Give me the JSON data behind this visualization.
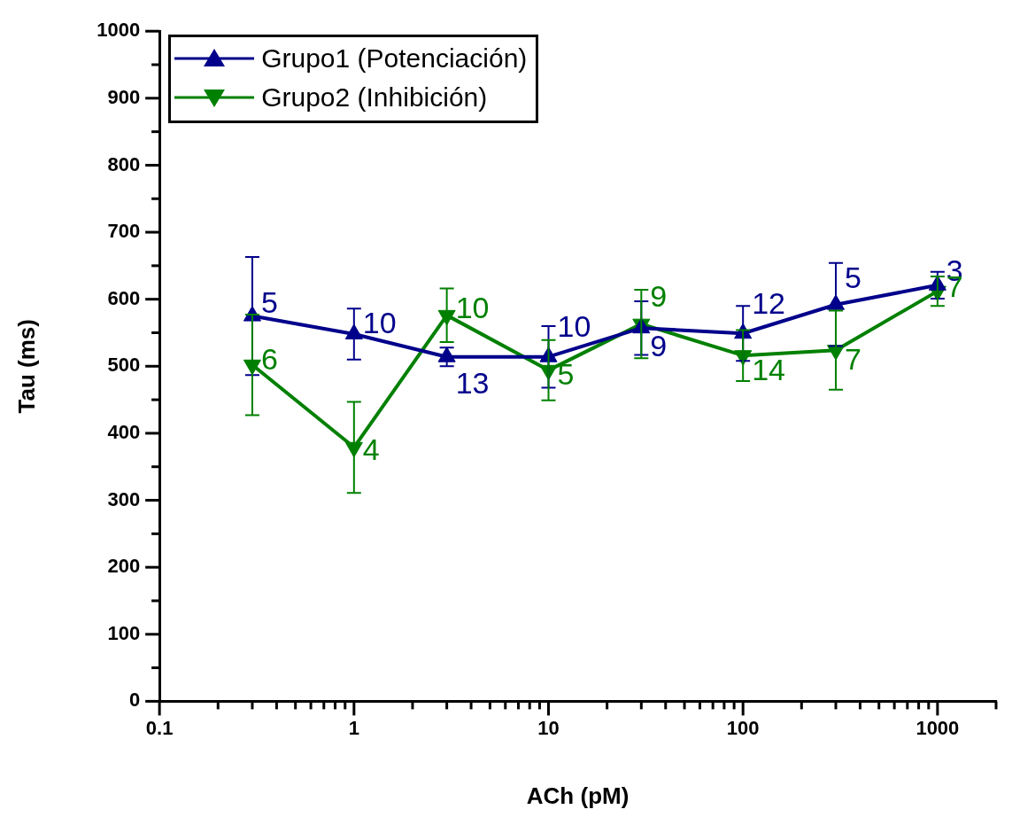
{
  "chart_data": {
    "type": "line",
    "xlabel": "ACh (pM)",
    "ylabel": "Tau (ms)",
    "log": "x",
    "x": [
      0.3,
      1,
      3,
      10,
      30,
      100,
      300,
      1000
    ],
    "series": [
      {
        "name": "Grupo1 (Potenciación)",
        "color": "#00008b",
        "marker": "triangle",
        "values": [
          575,
          548,
          514,
          514,
          557,
          549,
          592,
          621
        ],
        "errors": [
          88,
          38,
          14,
          46,
          40,
          41,
          62,
          20
        ]
      },
      {
        "name": "Grupo2 (Inhibición)",
        "color": "#008000",
        "marker": "triangle-down",
        "values": [
          502,
          379,
          576,
          494,
          563,
          516,
          524,
          612
        ],
        "errors": [
          75,
          68,
          40,
          45,
          51,
          38,
          59,
          22
        ]
      }
    ],
    "xlim": [
      0.1,
      2000
    ],
    "xticks": [
      0.1,
      {
        "value": 0.2,
        "label": null
      },
      {
        "value": 0.3,
        "label": null
      },
      {
        "value": 0.4,
        "label": null
      },
      {
        "value": 0.5,
        "label": null
      },
      {
        "value": 0.6,
        "label": null
      },
      {
        "value": 0.7,
        "label": null
      },
      {
        "value": 0.8,
        "label": null
      },
      {
        "value": 0.9,
        "label": null
      },
      1,
      {
        "value": 2,
        "label": null
      },
      {
        "value": 3,
        "label": null
      },
      {
        "value": 4,
        "label": null
      },
      {
        "value": 5,
        "label": null
      },
      {
        "value": 6,
        "label": null
      },
      {
        "value": 7,
        "label": null
      },
      {
        "value": 8,
        "label": null
      },
      {
        "value": 9,
        "label": null
      },
      10,
      {
        "value": 20,
        "label": null
      },
      {
        "value": 30,
        "label": null
      },
      {
        "value": 40,
        "label": null
      },
      {
        "value": 50,
        "label": null
      },
      {
        "value": 60,
        "label": null
      },
      {
        "value": 70,
        "label": null
      },
      {
        "value": 80,
        "label": null
      },
      {
        "value": 90,
        "label": null
      },
      100,
      {
        "value": 200,
        "label": null
      },
      {
        "value": 300,
        "label": null
      },
      {
        "value": 400,
        "label": null
      },
      {
        "value": 500,
        "label": null
      },
      {
        "value": 600,
        "label": null
      },
      {
        "value": 700,
        "label": null
      },
      {
        "value": 800,
        "label": null
      },
      {
        "value": 900,
        "label": null
      },
      1000,
      {
        "value": 2000,
        "label": null
      }
    ],
    "ylim": [
      0,
      1000
    ],
    "yticks": [
      0,
      {
        "value": 50,
        "label": null
      },
      100,
      {
        "value": 150,
        "label": null
      },
      200,
      {
        "value": 250,
        "label": null
      },
      300,
      {
        "value": 350,
        "label": null
      },
      400,
      {
        "value": 450,
        "label": null
      },
      500,
      {
        "value": 550,
        "label": null
      },
      600,
      {
        "value": 650,
        "label": null
      },
      700,
      {
        "value": 750,
        "label": null
      },
      800,
      {
        "value": 850,
        "label": null
      },
      900,
      {
        "value": 950,
        "label": null
      },
      1000
    ],
    "grid": false,
    "legend": "top left",
    "line_style": "solid",
    "annotations": [
      {
        "text": "5",
        "x": 0.3,
        "y": 592
      },
      {
        "text": "10",
        "x": 1,
        "y": 562
      },
      {
        "text": "13",
        "x": 3,
        "y": 514
      },
      {
        "text": "10",
        "x": 10,
        "y": 514
      },
      {
        "text": "9",
        "x": 30,
        "y": 527
      },
      {
        "text": "12",
        "x": 100,
        "y": 549
      },
      {
        "text": "5",
        "x": 300,
        "y": 629
      },
      {
        "text": "3",
        "x": 1000,
        "y": 640
      },
      {
        "text": "6",
        "x": 0.3,
        "y": 507
      },
      {
        "text": "4",
        "x": 1,
        "y": 372
      },
      {
        "text": "10",
        "x": 3,
        "y": 584
      },
      {
        "text": "5",
        "x": 10,
        "y": 485
      },
      {
        "text": "9",
        "x": 30,
        "y": 601
      },
      {
        "text": "14",
        "x": 100,
        "y": 491
      },
      {
        "text": "7",
        "x": 300,
        "y": 507
      },
      {
        "text": "7",
        "x": 1000,
        "y": 616
      }
    ]
  }
}
